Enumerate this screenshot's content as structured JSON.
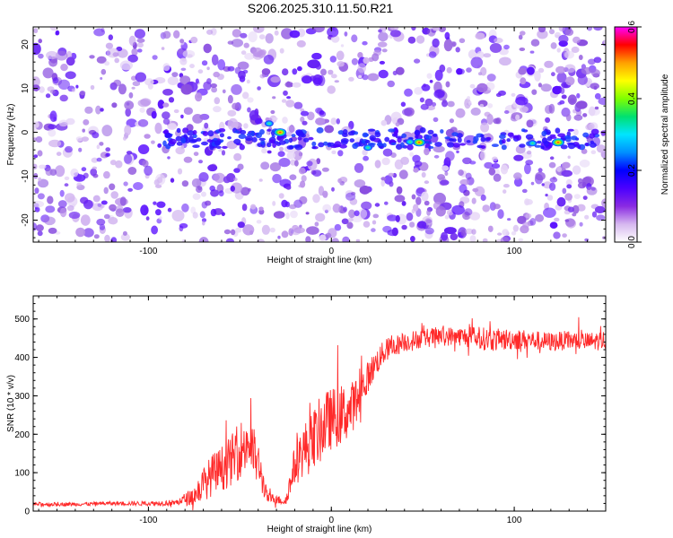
{
  "figure_title": "S206.2025.310.11.50.R21",
  "chart_data": [
    {
      "type": "heatmap",
      "xlabel": "Height of straight line (km)",
      "ylabel": "Frequency (Hz)",
      "xlim": [
        -163,
        150
      ],
      "ylim": [
        -25,
        24
      ],
      "xticks": [
        -100,
        0,
        100
      ],
      "yticks": [
        -20,
        -10,
        0,
        10,
        20
      ],
      "colorbar": {
        "label": "Normalized spectral amplitude",
        "range": [
          0.0,
          0.6
        ],
        "ticks": [
          "0.0",
          "0.2",
          "0.4",
          "0.6"
        ],
        "colormap": [
          "#ffffff",
          "#d6b8ef",
          "#8a2be2",
          "#4b00ff",
          "#0000ff",
          "#0090ff",
          "#00e5ff",
          "#00e070",
          "#7fff00",
          "#ffff00",
          "#ffa000",
          "#ff0000",
          "#ff00ff"
        ]
      },
      "signal_band_hz": [
        -3.5,
        0.5
      ],
      "bright_features": [
        {
          "x_km": -28,
          "freq_hz": 0,
          "amplitude": 0.48
        },
        {
          "x_km": 48,
          "freq_hz": -2.3,
          "amplitude": 0.55
        },
        {
          "x_km": 124,
          "freq_hz": -2.3,
          "amplitude": 0.5
        },
        {
          "x_km": -34,
          "freq_hz": 2,
          "amplitude": 0.25
        },
        {
          "x_km": 20,
          "freq_hz": -3.5,
          "amplitude": 0.22
        },
        {
          "x_km": 43,
          "freq_hz": -2.2,
          "amplitude": 0.28
        },
        {
          "x_km": 110,
          "freq_hz": -2.5,
          "amplitude": 0.2
        }
      ]
    },
    {
      "type": "line",
      "xlabel": "Height of straight line (km)",
      "ylabel": "SNR (10 * v/v)",
      "xlim": [
        -163,
        150
      ],
      "ylim": [
        0,
        560
      ],
      "xticks": [
        -100,
        0,
        100
      ],
      "yticks": [
        0,
        100,
        200,
        300,
        400,
        500
      ],
      "line_color": "#ff2a2a",
      "series": [
        {
          "name": "SNR",
          "x": [
            -163,
            -140,
            -120,
            -100,
            -85,
            -75,
            -70,
            -65,
            -60,
            -55,
            -50,
            -45,
            -40,
            -35,
            -30,
            -25,
            -20,
            -15,
            -10,
            -5,
            0,
            5,
            10,
            15,
            20,
            25,
            30,
            40,
            50,
            60,
            70,
            80,
            90,
            100,
            110,
            120,
            130,
            140,
            150
          ],
          "y": [
            18,
            18,
            20,
            20,
            22,
            40,
            70,
            95,
            110,
            130,
            160,
            180,
            120,
            35,
            30,
            25,
            120,
            160,
            180,
            220,
            240,
            250,
            260,
            300,
            350,
            390,
            420,
            440,
            450,
            455,
            455,
            450,
            445,
            448,
            445,
            440,
            445,
            440,
            445
          ],
          "noise": [
            5,
            5,
            5,
            6,
            8,
            25,
            45,
            55,
            60,
            65,
            75,
            80,
            60,
            15,
            12,
            10,
            55,
            70,
            80,
            90,
            80,
            80,
            70,
            60,
            40,
            35,
            30,
            25,
            25,
            25,
            25,
            30,
            30,
            28,
            25,
            25,
            25,
            25,
            25
          ]
        }
      ]
    }
  ]
}
